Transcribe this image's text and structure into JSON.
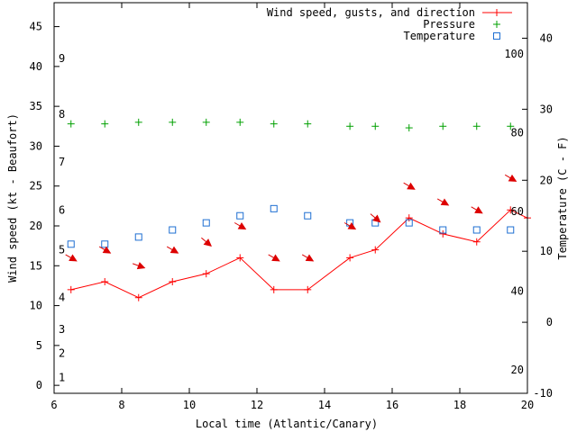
{
  "chart_data": {
    "type": "line",
    "title": "",
    "xlabel": "Local time (Atlantic/Canary)",
    "ylabel": "Wind speed (kt - Beaufort)",
    "y2label": "Temperature (C - F)",
    "xlim": [
      6,
      20
    ],
    "ylim": [
      -1,
      48
    ],
    "y2lim": [
      -10,
      45
    ],
    "x_ticks": [
      "6",
      "8",
      "10",
      "12",
      "14",
      "16",
      "18",
      "20"
    ],
    "y_ticks": [
      "0",
      "5",
      "10",
      "15",
      "20",
      "25",
      "30",
      "35",
      "40",
      "45"
    ],
    "y2_ticks": [
      "-10",
      "0",
      "10",
      "20",
      "30",
      "40"
    ],
    "beaufort_labels": [
      {
        "label": "1",
        "kt": 1
      },
      {
        "label": "2",
        "kt": 4
      },
      {
        "label": "3",
        "kt": 7
      },
      {
        "label": "4",
        "kt": 11
      },
      {
        "label": "5",
        "kt": 17
      },
      {
        "label": "6",
        "kt": 22
      },
      {
        "label": "7",
        "kt": 28
      },
      {
        "label": "8",
        "kt": 34
      },
      {
        "label": "9",
        "kt": 41
      }
    ],
    "fahrenheit_labels": [
      {
        "label": "20",
        "c": -6.7
      },
      {
        "label": "40",
        "c": 4.4
      },
      {
        "label": "60",
        "c": 15.6
      },
      {
        "label": "80",
        "c": 26.7
      },
      {
        "label": "100",
        "c": 37.8
      }
    ],
    "legend_position": "top-right",
    "series": [
      {
        "name": "Wind speed, gusts, and direction",
        "color": "#ff0000",
        "marker": "plus",
        "axis": "left",
        "x": [
          6.5,
          7.5,
          8.5,
          9.5,
          10.5,
          11.5,
          12.5,
          13.5,
          14.75,
          15.5,
          16.5,
          17.5,
          18.5,
          19.5,
          20
        ],
        "values": [
          12,
          13,
          11,
          13,
          14,
          16,
          12,
          12,
          16,
          17,
          21,
          19,
          18,
          22,
          21
        ]
      },
      {
        "name": "Pressure",
        "color": "#00a000",
        "marker": "plus",
        "axis": "left",
        "x": [
          6.5,
          7.5,
          8.5,
          9.5,
          10.5,
          11.5,
          12.5,
          13.5,
          14.75,
          15.5,
          16.5,
          17.5,
          18.5,
          19.5
        ],
        "values": [
          32.8,
          32.8,
          33,
          33,
          33,
          33,
          32.8,
          32.8,
          32.5,
          32.5,
          32.3,
          32.5,
          32.5,
          32.5
        ]
      },
      {
        "name": "Temperature",
        "color": "#1e6fd2",
        "marker": "square",
        "axis": "right",
        "x": [
          6.5,
          7.5,
          8.5,
          9.5,
          10.5,
          11.5,
          12.5,
          13.5,
          14.75,
          15.5,
          16.5,
          17.5,
          18.5,
          19.5
        ],
        "values": [
          11,
          11,
          12,
          13,
          14,
          15,
          16,
          15,
          14,
          14,
          14,
          13,
          13,
          13
        ]
      }
    ],
    "wind_arrows": {
      "color": "#dd0000",
      "x": [
        6.5,
        7.5,
        8.5,
        9.5,
        10.5,
        11.5,
        12.5,
        13.5,
        14.75,
        15.5,
        16.5,
        17.5,
        18.5,
        19.5
      ],
      "kt": [
        16,
        17,
        15,
        17,
        18,
        20,
        16,
        16,
        20,
        21,
        25,
        23,
        22,
        26
      ],
      "direction_deg": [
        300,
        300,
        290,
        300,
        310,
        300,
        300,
        300,
        300,
        310,
        300,
        300,
        300,
        300
      ]
    }
  }
}
